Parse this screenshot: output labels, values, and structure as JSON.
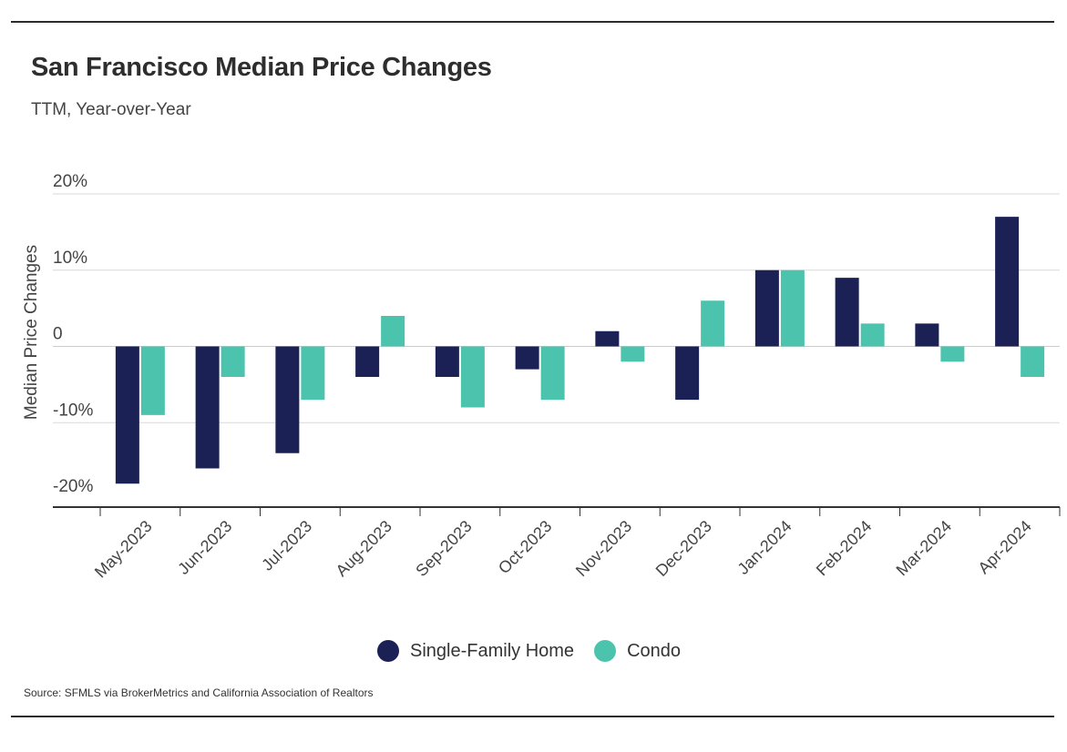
{
  "header": {
    "title": "San Francisco Median Price Changes",
    "subtitle": "TTM, Year-over-Year"
  },
  "footer": {
    "source": "Source:  SFMLS via BrokerMetrics and California Association of Realtors"
  },
  "colors": {
    "single_family": "#1b2155",
    "condo": "#4cc3ad",
    "grid": "#d9d9d9",
    "axis": "#333333"
  },
  "chart_data": {
    "type": "bar",
    "title": "San Francisco Median Price Changes",
    "subtitle": "TTM, Year-over-Year",
    "xlabel": "",
    "ylabel": "Median Price Changes",
    "ylim": [
      -20,
      20
    ],
    "yticks": [
      20,
      10,
      0,
      -10,
      -20
    ],
    "ytick_labels": [
      "20%",
      "10%",
      "0",
      "-10%",
      "-20%"
    ],
    "categories": [
      "May-2023",
      "Jun-2023",
      "Jul-2023",
      "Aug-2023",
      "Sep-2023",
      "Oct-2023",
      "Nov-2023",
      "Dec-2023",
      "Jan-2024",
      "Feb-2024",
      "Mar-2024",
      "Apr-2024"
    ],
    "series": [
      {
        "name": "Single-Family Home",
        "color": "#1b2155",
        "values": [
          -18,
          -16,
          -14,
          -4,
          -4,
          -3,
          2,
          -7,
          10,
          9,
          3,
          17
        ]
      },
      {
        "name": "Condo",
        "color": "#4cc3ad",
        "values": [
          -9,
          -4,
          -7,
          4,
          -8,
          -7,
          -2,
          6,
          10,
          3,
          -2,
          -4
        ]
      }
    ],
    "grid": true,
    "legend": "bottom-center"
  }
}
